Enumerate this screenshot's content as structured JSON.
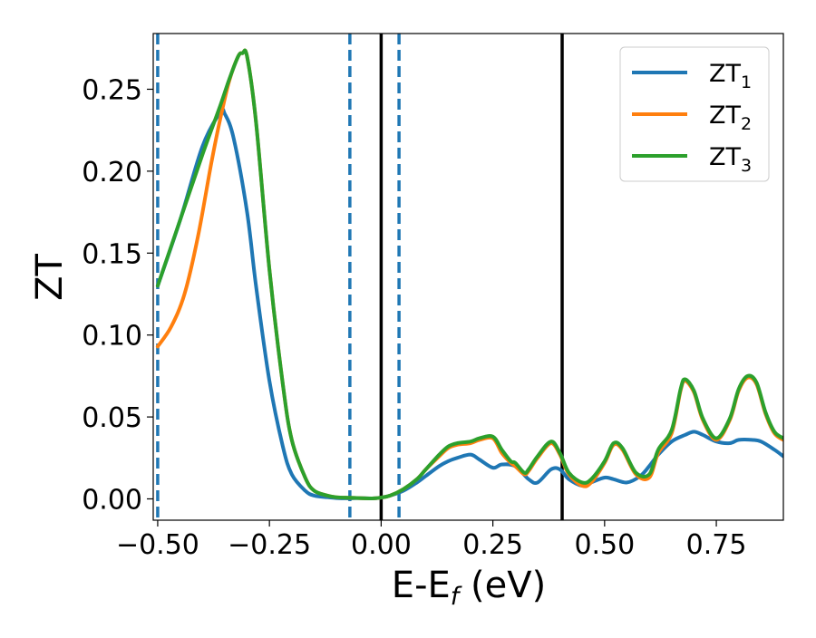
{
  "chart_data": {
    "type": "line",
    "title": "",
    "xlabel": "E-E",
    "xlabel_subscript": "f",
    "xlabel_unit": " (eV)",
    "ylabel": "ZT",
    "xlim": [
      -0.51,
      0.9
    ],
    "ylim": [
      -0.013,
      0.284
    ],
    "xticks": [
      -0.5,
      -0.25,
      0.0,
      0.25,
      0.5,
      0.75
    ],
    "xtick_labels": [
      "−0.50",
      "−0.25",
      "0.00",
      "0.25",
      "0.50",
      "0.75"
    ],
    "yticks": [
      0.0,
      0.05,
      0.1,
      0.15,
      0.2,
      0.25
    ],
    "ytick_labels": [
      "0.00",
      "0.05",
      "0.10",
      "0.15",
      "0.20",
      "0.25"
    ],
    "grid": false,
    "legend_position": "top-right",
    "vlines_solid": [
      0.0,
      0.405
    ],
    "vlines_dashed": [
      -0.5,
      -0.07,
      0.04
    ],
    "colors": {
      "solid_vline": "#000000",
      "dashed_vline": "#1f77b4"
    },
    "series": [
      {
        "name": "ZT",
        "name_subscript": "1",
        "color": "#1f77b4",
        "x": [
          -0.5,
          -0.45,
          -0.4,
          -0.36,
          -0.35,
          -0.33,
          -0.3,
          -0.28,
          -0.25,
          -0.22,
          -0.2,
          -0.17,
          -0.15,
          -0.12,
          -0.1,
          -0.07,
          -0.05,
          -0.02,
          0.0,
          0.02,
          0.05,
          0.08,
          0.1,
          0.13,
          0.15,
          0.17,
          0.2,
          0.22,
          0.25,
          0.27,
          0.3,
          0.33,
          0.35,
          0.38,
          0.4,
          0.42,
          0.45,
          0.47,
          0.5,
          0.52,
          0.55,
          0.58,
          0.6,
          0.62,
          0.65,
          0.68,
          0.7,
          0.72,
          0.75,
          0.78,
          0.8,
          0.83,
          0.85,
          0.88,
          0.9
        ],
        "y": [
          0.13,
          0.17,
          0.215,
          0.236,
          0.235,
          0.22,
          0.175,
          0.13,
          0.072,
          0.032,
          0.015,
          0.005,
          0.002,
          0.001,
          0.0005,
          0.0003,
          0.0005,
          0.0003,
          0.0008,
          0.002,
          0.005,
          0.01,
          0.014,
          0.02,
          0.023,
          0.025,
          0.027,
          0.024,
          0.019,
          0.021,
          0.02,
          0.012,
          0.01,
          0.018,
          0.018,
          0.012,
          0.008,
          0.01,
          0.013,
          0.012,
          0.01,
          0.014,
          0.02,
          0.027,
          0.035,
          0.039,
          0.041,
          0.039,
          0.035,
          0.034,
          0.036,
          0.036,
          0.035,
          0.03,
          0.026
        ]
      },
      {
        "name": "ZT",
        "name_subscript": "2",
        "color": "#ff7f0e",
        "x": [
          -0.5,
          -0.47,
          -0.44,
          -0.41,
          -0.38,
          -0.36,
          -0.34,
          -0.32,
          -0.31,
          -0.3,
          -0.28,
          -0.25,
          -0.22,
          -0.2,
          -0.17,
          -0.15,
          -0.12,
          -0.1,
          -0.07,
          -0.05,
          -0.02,
          0.0,
          0.02,
          0.05,
          0.08,
          0.1,
          0.13,
          0.15,
          0.17,
          0.2,
          0.22,
          0.25,
          0.27,
          0.29,
          0.3,
          0.32,
          0.33,
          0.35,
          0.38,
          0.4,
          0.42,
          0.45,
          0.47,
          0.5,
          0.52,
          0.54,
          0.57,
          0.6,
          0.62,
          0.65,
          0.67,
          0.68,
          0.7,
          0.72,
          0.75,
          0.78,
          0.8,
          0.82,
          0.84,
          0.86,
          0.88,
          0.9
        ],
        "y": [
          0.093,
          0.105,
          0.125,
          0.16,
          0.205,
          0.232,
          0.255,
          0.27,
          0.272,
          0.27,
          0.23,
          0.14,
          0.07,
          0.036,
          0.013,
          0.005,
          0.002,
          0.001,
          0.0007,
          0.0005,
          0.0003,
          0.0008,
          0.002,
          0.006,
          0.012,
          0.018,
          0.026,
          0.031,
          0.033,
          0.034,
          0.036,
          0.037,
          0.028,
          0.022,
          0.02,
          0.015,
          0.017,
          0.025,
          0.034,
          0.027,
          0.015,
          0.008,
          0.01,
          0.022,
          0.033,
          0.03,
          0.015,
          0.013,
          0.028,
          0.04,
          0.066,
          0.072,
          0.065,
          0.048,
          0.036,
          0.048,
          0.066,
          0.074,
          0.07,
          0.052,
          0.04,
          0.036
        ]
      },
      {
        "name": "ZT",
        "name_subscript": "3",
        "color": "#2ca02c",
        "x": [
          -0.5,
          -0.45,
          -0.4,
          -0.36,
          -0.34,
          -0.32,
          -0.31,
          -0.3,
          -0.28,
          -0.25,
          -0.22,
          -0.2,
          -0.17,
          -0.15,
          -0.12,
          -0.1,
          -0.07,
          -0.05,
          -0.02,
          0.0,
          0.02,
          0.05,
          0.08,
          0.1,
          0.13,
          0.15,
          0.17,
          0.2,
          0.22,
          0.25,
          0.27,
          0.29,
          0.3,
          0.32,
          0.33,
          0.35,
          0.38,
          0.4,
          0.42,
          0.45,
          0.47,
          0.5,
          0.52,
          0.54,
          0.57,
          0.6,
          0.62,
          0.65,
          0.67,
          0.68,
          0.7,
          0.72,
          0.75,
          0.78,
          0.8,
          0.82,
          0.84,
          0.86,
          0.88,
          0.9
        ],
        "y": [
          0.13,
          0.17,
          0.21,
          0.24,
          0.256,
          0.27,
          0.272,
          0.27,
          0.23,
          0.14,
          0.07,
          0.036,
          0.013,
          0.005,
          0.002,
          0.001,
          0.0007,
          0.0005,
          0.0003,
          0.0008,
          0.002,
          0.006,
          0.012,
          0.018,
          0.027,
          0.032,
          0.034,
          0.035,
          0.037,
          0.038,
          0.03,
          0.023,
          0.022,
          0.016,
          0.018,
          0.026,
          0.035,
          0.028,
          0.016,
          0.01,
          0.012,
          0.023,
          0.034,
          0.031,
          0.016,
          0.015,
          0.03,
          0.042,
          0.067,
          0.073,
          0.066,
          0.049,
          0.037,
          0.049,
          0.067,
          0.075,
          0.071,
          0.053,
          0.041,
          0.037
        ]
      }
    ]
  }
}
